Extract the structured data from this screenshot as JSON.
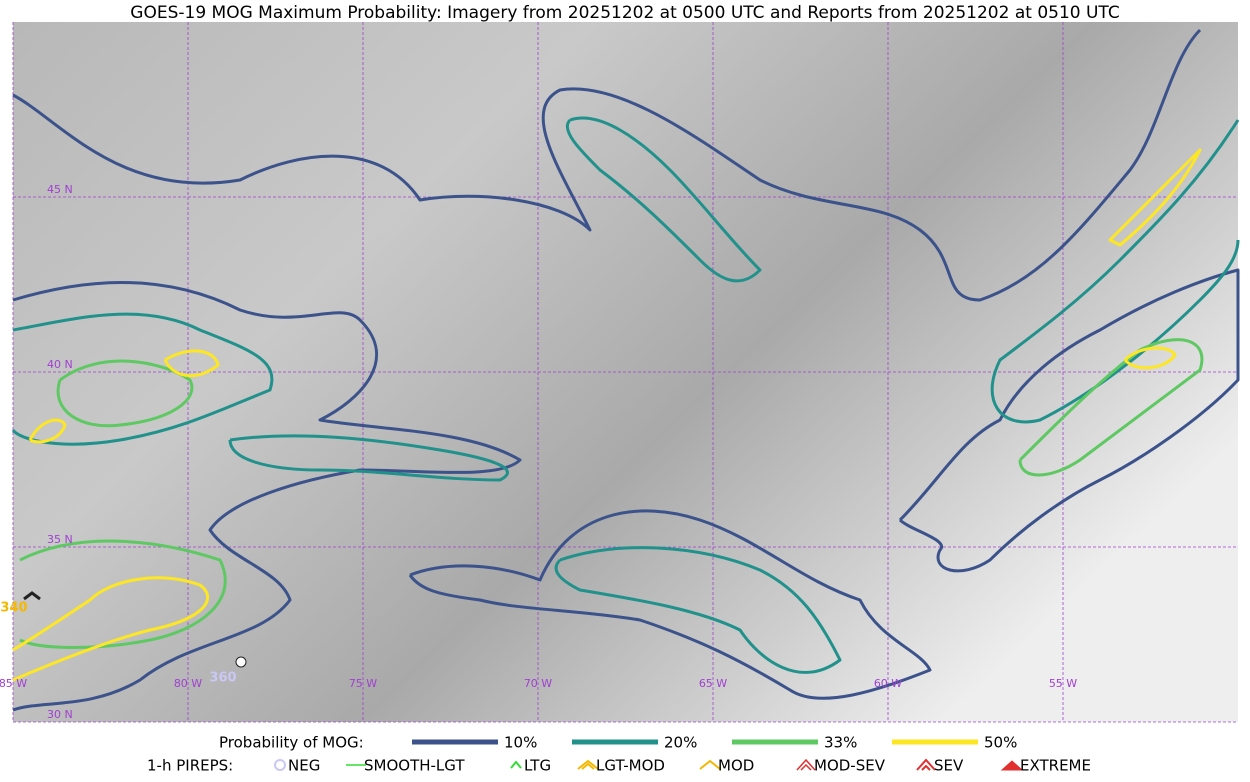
{
  "title": "GOES-19 MOG Maximum Probability: Imagery from 20251202 at 0500 UTC and Reports from 20251202 at 0510 UTC",
  "map": {
    "lat_labels": [
      "45 N",
      "40 N",
      "35 N",
      "30 N"
    ],
    "lon_labels": [
      "85 W",
      "80 W",
      "75 W",
      "70 W",
      "65 W",
      "60 W",
      "55 W"
    ],
    "flight_levels": [
      "340",
      "360"
    ]
  },
  "legend": {
    "title": "Probability of MOG:",
    "levels": [
      {
        "label": "10%",
        "color": "#3b528b"
      },
      {
        "label": "20%",
        "color": "#21918c"
      },
      {
        "label": "33%",
        "color": "#5ec962"
      },
      {
        "label": "50%",
        "color": "#fde725"
      }
    ],
    "pireps_title": "1-h PIREPS:",
    "pireps": [
      "NEG",
      "SMOOTH-LGT",
      "LTG",
      "LGT-MOD",
      "MOD",
      "MOD-SEV",
      "SEV",
      "EXTREME"
    ]
  }
}
